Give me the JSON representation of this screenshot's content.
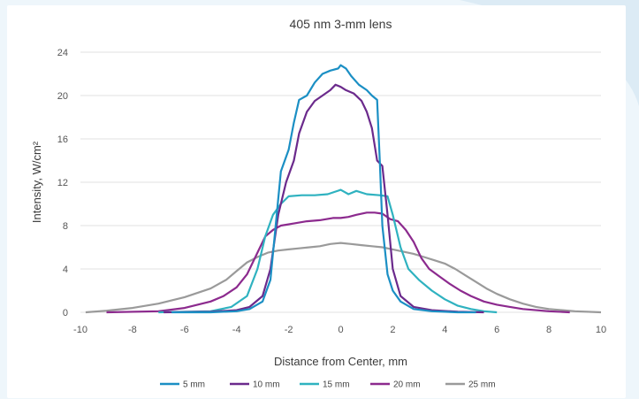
{
  "chart_data": {
    "type": "line",
    "title": "405 nm 3-mm lens",
    "xlabel": "Distance from Center, mm",
    "ylabel": "Intensity, W/cm²",
    "xlim": [
      -10,
      10
    ],
    "ylim": [
      0,
      24
    ],
    "xticks": [
      -10,
      -8,
      -6,
      -4,
      -2,
      0,
      2,
      4,
      6,
      8,
      10
    ],
    "yticks": [
      0,
      4,
      8,
      12,
      16,
      20,
      24
    ],
    "grid": "horizontal",
    "legend_position": "bottom",
    "series": [
      {
        "name": "5 mm",
        "color": "#1b8fc4",
        "points": [
          [
            -6.5,
            0
          ],
          [
            -5,
            0
          ],
          [
            -4,
            0.1
          ],
          [
            -3.5,
            0.3
          ],
          [
            -3,
            1
          ],
          [
            -2.7,
            3
          ],
          [
            -2.5,
            8
          ],
          [
            -2.3,
            13
          ],
          [
            -2,
            15
          ],
          [
            -1.8,
            17.5
          ],
          [
            -1.6,
            19.6
          ],
          [
            -1.3,
            20
          ],
          [
            -1,
            21.2
          ],
          [
            -0.7,
            22
          ],
          [
            -0.4,
            22.3
          ],
          [
            -0.1,
            22.5
          ],
          [
            0,
            22.8
          ],
          [
            0.2,
            22.5
          ],
          [
            0.4,
            21.8
          ],
          [
            0.7,
            21
          ],
          [
            1,
            20.5
          ],
          [
            1.2,
            20
          ],
          [
            1.4,
            19.6
          ],
          [
            1.5,
            14
          ],
          [
            1.6,
            8
          ],
          [
            1.8,
            3.5
          ],
          [
            2,
            2
          ],
          [
            2.3,
            1
          ],
          [
            2.8,
            0.3
          ],
          [
            3.5,
            0.1
          ],
          [
            4.5,
            0
          ],
          [
            5.2,
            0
          ]
        ]
      },
      {
        "name": "10 mm",
        "color": "#6b2a8c",
        "points": [
          [
            -6.8,
            0
          ],
          [
            -5,
            0.05
          ],
          [
            -4,
            0.2
          ],
          [
            -3.5,
            0.5
          ],
          [
            -3,
            1.5
          ],
          [
            -2.7,
            4
          ],
          [
            -2.4,
            9
          ],
          [
            -2.1,
            12
          ],
          [
            -1.8,
            14
          ],
          [
            -1.6,
            16.5
          ],
          [
            -1.3,
            18.5
          ],
          [
            -1,
            19.5
          ],
          [
            -0.7,
            20
          ],
          [
            -0.4,
            20.5
          ],
          [
            -0.2,
            21
          ],
          [
            0,
            20.8
          ],
          [
            0.2,
            20.5
          ],
          [
            0.5,
            20.2
          ],
          [
            0.8,
            19.5
          ],
          [
            1,
            18.5
          ],
          [
            1.2,
            17
          ],
          [
            1.4,
            14
          ],
          [
            1.6,
            13.5
          ],
          [
            1.8,
            9
          ],
          [
            2,
            4
          ],
          [
            2.3,
            1.5
          ],
          [
            2.8,
            0.5
          ],
          [
            3.5,
            0.2
          ],
          [
            4.5,
            0.05
          ],
          [
            5.5,
            0
          ]
        ]
      },
      {
        "name": "15 mm",
        "color": "#2fb2c0",
        "points": [
          [
            -7,
            0
          ],
          [
            -5,
            0.1
          ],
          [
            -4.2,
            0.5
          ],
          [
            -3.6,
            1.5
          ],
          [
            -3.2,
            4
          ],
          [
            -2.9,
            7
          ],
          [
            -2.6,
            9
          ],
          [
            -2.3,
            10
          ],
          [
            -2,
            10.7
          ],
          [
            -1.5,
            10.8
          ],
          [
            -1,
            10.8
          ],
          [
            -0.5,
            10.9
          ],
          [
            0,
            11.3
          ],
          [
            0.3,
            10.9
          ],
          [
            0.6,
            11.2
          ],
          [
            1,
            10.9
          ],
          [
            1.5,
            10.8
          ],
          [
            1.8,
            10.7
          ],
          [
            2,
            9
          ],
          [
            2.3,
            6
          ],
          [
            2.6,
            4
          ],
          [
            3,
            3
          ],
          [
            3.5,
            2
          ],
          [
            4,
            1.2
          ],
          [
            4.5,
            0.6
          ],
          [
            5,
            0.3
          ],
          [
            5.5,
            0.1
          ],
          [
            6,
            0
          ]
        ]
      },
      {
        "name": "20 mm",
        "color": "#8c2a8e",
        "points": [
          [
            -9,
            0
          ],
          [
            -7,
            0.1
          ],
          [
            -6,
            0.4
          ],
          [
            -5,
            1
          ],
          [
            -4.5,
            1.5
          ],
          [
            -4,
            2.3
          ],
          [
            -3.6,
            3.5
          ],
          [
            -3.2,
            5.5
          ],
          [
            -2.9,
            7
          ],
          [
            -2.6,
            7.6
          ],
          [
            -2.3,
            8
          ],
          [
            -1.8,
            8.2
          ],
          [
            -1.3,
            8.4
          ],
          [
            -0.8,
            8.5
          ],
          [
            -0.3,
            8.7
          ],
          [
            0,
            8.7
          ],
          [
            0.3,
            8.8
          ],
          [
            0.6,
            9
          ],
          [
            1,
            9.2
          ],
          [
            1.3,
            9.2
          ],
          [
            1.6,
            9.1
          ],
          [
            1.9,
            8.6
          ],
          [
            2.2,
            8.4
          ],
          [
            2.5,
            7.6
          ],
          [
            2.8,
            6.5
          ],
          [
            3.1,
            5
          ],
          [
            3.4,
            4
          ],
          [
            3.8,
            3.3
          ],
          [
            4.2,
            2.6
          ],
          [
            4.6,
            2
          ],
          [
            5,
            1.5
          ],
          [
            5.5,
            1
          ],
          [
            6,
            0.7
          ],
          [
            6.5,
            0.5
          ],
          [
            7,
            0.3
          ],
          [
            8,
            0.1
          ],
          [
            8.8,
            0
          ]
        ]
      },
      {
        "name": "25 mm",
        "color": "#9a9a9a",
        "points": [
          [
            -9.8,
            0
          ],
          [
            -9,
            0.15
          ],
          [
            -8,
            0.4
          ],
          [
            -7,
            0.8
          ],
          [
            -6,
            1.4
          ],
          [
            -5,
            2.2
          ],
          [
            -4.4,
            3
          ],
          [
            -4,
            3.8
          ],
          [
            -3.6,
            4.6
          ],
          [
            -3.2,
            5.1
          ],
          [
            -2.8,
            5.5
          ],
          [
            -2.4,
            5.7
          ],
          [
            -2,
            5.8
          ],
          [
            -1.6,
            5.9
          ],
          [
            -1.2,
            6
          ],
          [
            -0.8,
            6.1
          ],
          [
            -0.4,
            6.3
          ],
          [
            0,
            6.4
          ],
          [
            0.4,
            6.3
          ],
          [
            0.8,
            6.2
          ],
          [
            1.2,
            6.1
          ],
          [
            1.6,
            6
          ],
          [
            2,
            5.8
          ],
          [
            2.4,
            5.6
          ],
          [
            2.8,
            5.4
          ],
          [
            3.2,
            5.1
          ],
          [
            3.6,
            4.8
          ],
          [
            4,
            4.5
          ],
          [
            4.4,
            4
          ],
          [
            4.8,
            3.4
          ],
          [
            5.2,
            2.8
          ],
          [
            5.6,
            2.2
          ],
          [
            6,
            1.7
          ],
          [
            6.5,
            1.2
          ],
          [
            7,
            0.8
          ],
          [
            7.5,
            0.5
          ],
          [
            8,
            0.3
          ],
          [
            9,
            0.1
          ],
          [
            10,
            0
          ]
        ]
      }
    ]
  }
}
